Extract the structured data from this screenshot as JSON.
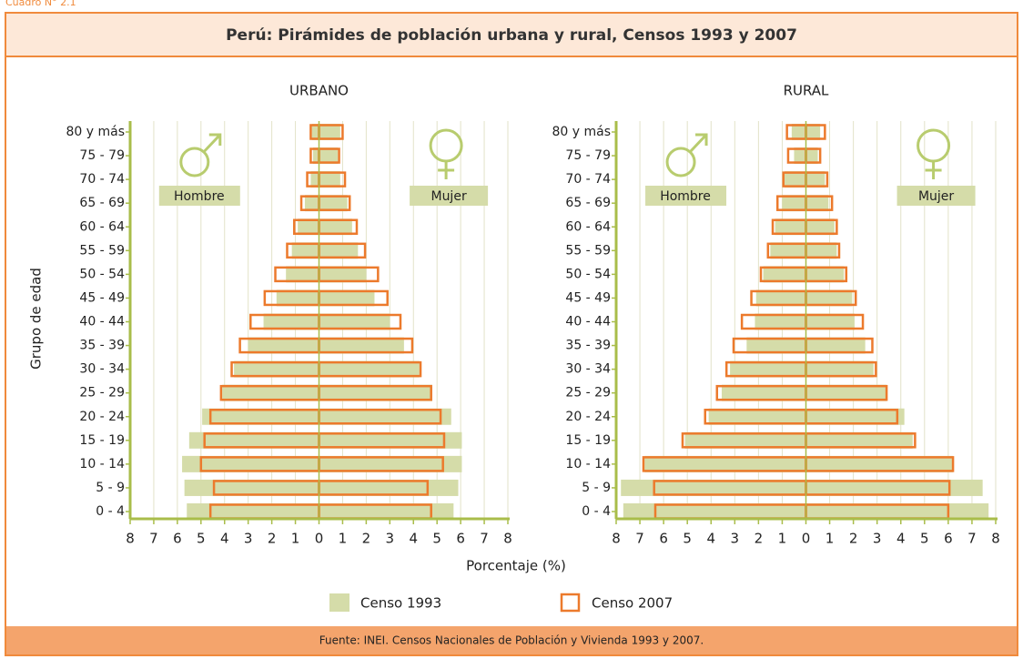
{
  "label_top": "Cuadro N° 2.1",
  "title": "Perú: Pirámides de población urbana y rural, Censos 1993 y 2007",
  "xlabel": "Porcentaje (%)",
  "ylabel": "Grupo de edad",
  "source": "Fuente: INEI. Censos Nacionales de Población y Vivienda 1993 y 2007.",
  "legend": [
    {
      "name": "Censo 1993",
      "color": "#d5dca9",
      "style": "fill"
    },
    {
      "name": "Censo 2007",
      "color": "#ec7a2c",
      "style": "outline"
    }
  ],
  "chart_data": [
    {
      "type": "pyramid",
      "title": "URBANO",
      "male_label": "Hombre",
      "female_label": "Mujer",
      "categories": [
        "0 - 4",
        "5 - 9",
        "10 - 14",
        "15 - 19",
        "20 - 24",
        "25 - 29",
        "30 - 34",
        "35 - 39",
        "40 - 44",
        "45 - 49",
        "50 - 54",
        "55 - 59",
        "60 - 64",
        "65 - 69",
        "70 - 74",
        "75 - 79",
        "80 y más"
      ],
      "xlim": [
        -8,
        8
      ],
      "xticks": [
        {
          "value": -8,
          "label": "8"
        },
        {
          "value": -7,
          "label": "7"
        },
        {
          "value": -6,
          "label": "6"
        },
        {
          "value": -5,
          "label": "5"
        },
        {
          "value": -4,
          "label": "4"
        },
        {
          "value": -3,
          "label": "3"
        },
        {
          "value": -2,
          "label": "2"
        },
        {
          "value": -1,
          "label": "1"
        },
        0,
        1,
        2,
        3,
        4,
        5,
        6,
        7,
        8
      ],
      "series": [
        {
          "male": [
            5.6,
            5.7,
            5.8,
            5.5,
            4.95,
            4.1,
            3.6,
            3.0,
            2.35,
            1.8,
            1.4,
            1.15,
            0.9,
            0.6,
            0.35,
            0.25,
            0.3
          ],
          "female": [
            5.7,
            5.9,
            6.05,
            6.05,
            5.6,
            4.8,
            4.25,
            3.6,
            3.0,
            2.35,
            2.0,
            1.65,
            1.4,
            1.2,
            0.9,
            0.8,
            0.9
          ]
        },
        {
          "male": [
            4.6,
            4.45,
            5.0,
            4.85,
            4.6,
            4.15,
            3.7,
            3.35,
            2.9,
            2.3,
            1.85,
            1.35,
            1.05,
            0.75,
            0.5,
            0.35,
            0.35
          ],
          "female": [
            4.75,
            4.6,
            5.25,
            5.3,
            5.15,
            4.75,
            4.3,
            3.95,
            3.45,
            2.9,
            2.5,
            1.95,
            1.6,
            1.3,
            1.1,
            0.85,
            1.0
          ]
        }
      ]
    },
    {
      "type": "pyramid",
      "title": "RURAL",
      "male_label": "Hombre",
      "female_label": "Mujer",
      "categories": [
        "0 - 4",
        "5 - 9",
        "10 - 14",
        "15 - 19",
        "20 - 24",
        "25 - 29",
        "30 - 34",
        "35 - 39",
        "40 - 44",
        "45 - 49",
        "50 - 54",
        "55 - 59",
        "60 - 64",
        "65 - 69",
        "70 - 74",
        "75 - 79",
        "80 y más"
      ],
      "xlim": [
        -8,
        8
      ],
      "xticks": [
        {
          "value": -8,
          "label": "8"
        },
        {
          "value": -7,
          "label": "7"
        },
        {
          "value": -6,
          "label": "6"
        },
        {
          "value": -5,
          "label": "5"
        },
        {
          "value": -4,
          "label": "4"
        },
        {
          "value": -3,
          "label": "3"
        },
        {
          "value": -2,
          "label": "2"
        },
        {
          "value": -1,
          "label": "1"
        },
        0,
        1,
        2,
        3,
        4,
        5,
        6,
        7,
        8
      ],
      "series": [
        {
          "male": [
            7.7,
            7.8,
            6.8,
            5.1,
            4.1,
            3.55,
            3.2,
            2.5,
            2.15,
            2.1,
            1.8,
            1.5,
            1.3,
            1.0,
            0.9,
            0.5,
            0.6
          ],
          "female": [
            7.7,
            7.45,
            6.2,
            4.5,
            4.15,
            3.4,
            2.85,
            2.5,
            2.05,
            1.95,
            1.6,
            1.3,
            1.2,
            0.95,
            0.8,
            0.5,
            0.6
          ]
        },
        {
          "male": [
            6.35,
            6.4,
            6.85,
            5.2,
            4.25,
            3.75,
            3.35,
            3.05,
            2.7,
            2.3,
            1.9,
            1.6,
            1.4,
            1.2,
            0.95,
            0.75,
            0.8
          ],
          "female": [
            6.0,
            6.05,
            6.2,
            4.6,
            3.85,
            3.4,
            2.95,
            2.8,
            2.4,
            2.1,
            1.7,
            1.4,
            1.3,
            1.1,
            0.9,
            0.6,
            0.8
          ]
        }
      ]
    }
  ]
}
